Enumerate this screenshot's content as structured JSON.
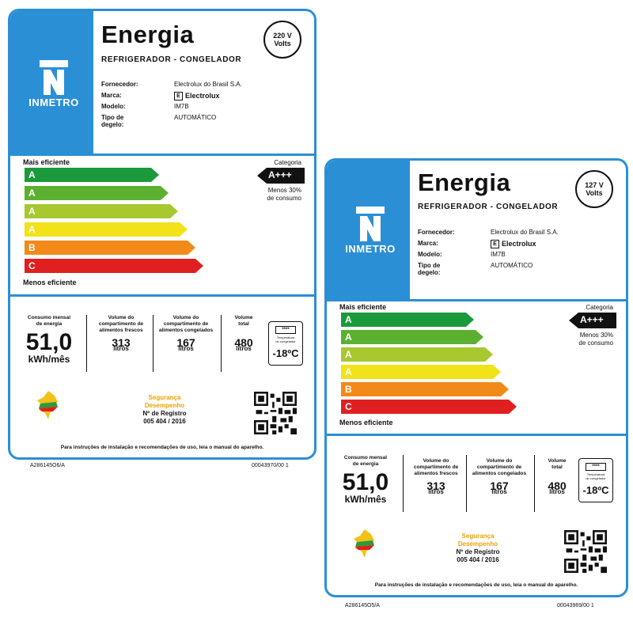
{
  "labels": [
    {
      "title": "Energia",
      "subtitle": "REFRIGERADOR - CONGELADOR",
      "volts_value": "220 V",
      "volts_unit": "Volts",
      "logo_text": "INMETRO",
      "fields": [
        {
          "key": "Fornecedor:",
          "value": "Electrolux do Brasil S.A."
        },
        {
          "key": "Marca:",
          "value": "Electrolux"
        },
        {
          "key": "Modelo:",
          "value": "IM7B"
        },
        {
          "key": "Tipo de degelo:",
          "value": "AUTOMÁTICO"
        }
      ],
      "mais_eficiente": "Mais eficiente",
      "menos_eficiente": "Menos eficiente",
      "bars": [
        "A +++",
        "A ++",
        "A +",
        "A",
        "B",
        "C"
      ],
      "categoria_label": "Categoria",
      "categoria_value": "A+++",
      "categoria_note_1": "Menos 30%",
      "categoria_note_2": "de consumo",
      "consumo_label_1": "Consumo mensal",
      "consumo_label_2": "de energia",
      "consumo_value": "51,0",
      "consumo_unit": "kWh/mês",
      "frescos_label_1": "Volume do",
      "frescos_label_2": "compartimento de",
      "frescos_label_3": "alimentos frescos",
      "frescos_value": "313",
      "frescos_unit": "litros",
      "congelados_label_1": "Volume do",
      "congelados_label_2": "compartimento de",
      "congelados_label_3": "alimentos congelados",
      "congelados_value": "167",
      "congelados_unit": "litros",
      "total_label_1": "Volume",
      "total_label_2": "total",
      "total_value": "480",
      "total_unit": "litros",
      "temp_stars": "****",
      "temp_text_1": "Temperatura",
      "temp_text_2": "do congelador",
      "temp_value": "-18ºC",
      "seguranca": "Segurança",
      "desempenho": "Desempenho",
      "registro_label": "Nº de Registro",
      "registro_value": "005 404 / 2016",
      "footer": "Para instruções de instalação e recomendações de uso, leia o manual do aparelho.",
      "code_left": "A286145O6/A",
      "code_right": "00043970/00 1"
    },
    {
      "title": "Energia",
      "subtitle": "REFRIGERADOR - CONGELADOR",
      "volts_value": "127 V",
      "volts_unit": "Volts",
      "logo_text": "INMETRO",
      "fields": [
        {
          "key": "Fornecedor:",
          "value": "Electrolux do Brasil S.A."
        },
        {
          "key": "Marca:",
          "value": "Electrolux"
        },
        {
          "key": "Modelo:",
          "value": "IM7B"
        },
        {
          "key": "Tipo de degelo:",
          "value": "AUTOMÁTICO"
        }
      ],
      "mais_eficiente": "Mais eficiente",
      "menos_eficiente": "Menos eficiente",
      "bars": [
        "A +++",
        "A ++",
        "A +",
        "A",
        "B",
        "C"
      ],
      "categoria_label": "Categoria",
      "categoria_value": "A+++",
      "categoria_note_1": "Menos 30%",
      "categoria_note_2": "de consumo",
      "consumo_label_1": "Consumo mensal",
      "consumo_label_2": "de energia",
      "consumo_value": "51,0",
      "consumo_unit": "kWh/mês",
      "frescos_label_1": "Volume do",
      "frescos_label_2": "compartimento de",
      "frescos_label_3": "alimentos frescos",
      "frescos_value": "313",
      "frescos_unit": "litros",
      "congelados_label_1": "Volume do",
      "congelados_label_2": "compartimento de",
      "congelados_label_3": "alimentos congelados",
      "congelados_value": "167",
      "congelados_unit": "litros",
      "total_label_1": "Volume",
      "total_label_2": "total",
      "total_value": "480",
      "total_unit": "litros",
      "temp_stars": "****",
      "temp_text_1": "Temperatura",
      "temp_text_2": "do congelador",
      "temp_value": "-18ºC",
      "seguranca": "Segurança",
      "desempenho": "Desempenho",
      "registro_label": "Nº de Registro",
      "registro_value": "005 404 / 2016",
      "footer": "Para instruções de instalação e recomendações de uso, leia o manual do aparelho.",
      "code_left": "A286145O5/A",
      "code_right": "00043969/00 1"
    }
  ],
  "colors": {
    "frame_blue": "#2b8fd6",
    "bar_colors": [
      "#1a9a3a",
      "#5cb030",
      "#a8c830",
      "#f2e21a",
      "#f28a1a",
      "#e02020"
    ],
    "seguranca_orange": "#f0a000"
  }
}
